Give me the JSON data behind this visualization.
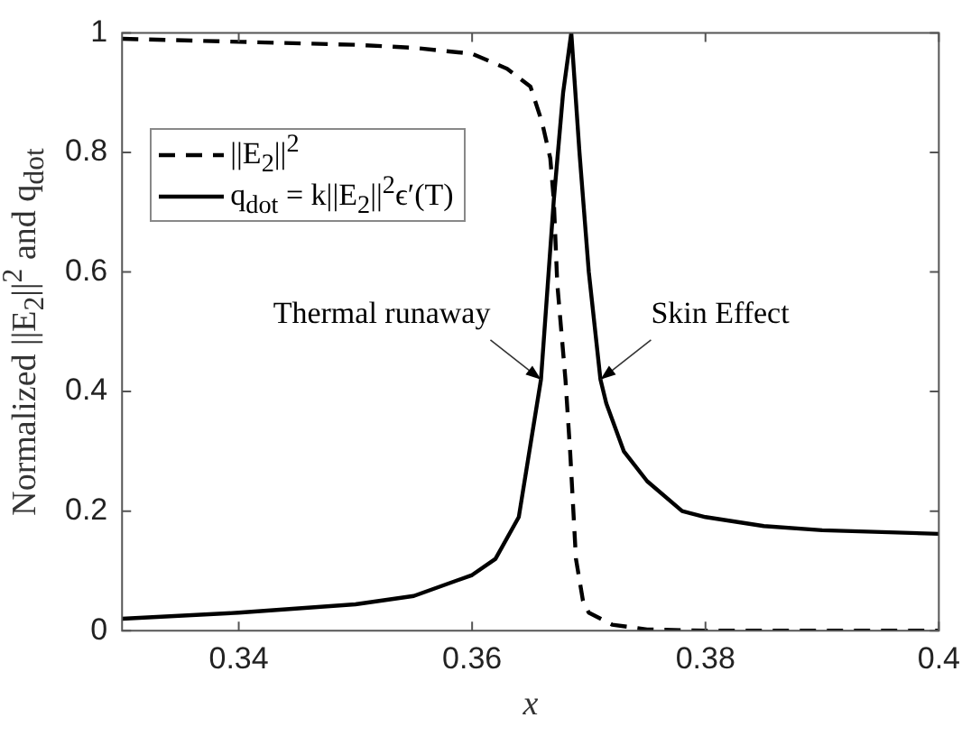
{
  "chart_data": {
    "type": "line",
    "xlabel": "x",
    "ylabel": "Normalized ||E$_{2}$||$^{2}$ and q$_{dot}$",
    "xlim": [
      0.33,
      0.4
    ],
    "xticks": [
      0.34,
      0.36,
      0.38,
      0.4
    ],
    "ylim": [
      0,
      1
    ],
    "yticks": [
      0,
      0.2,
      0.4,
      0.6,
      0.8,
      1
    ],
    "grid": false,
    "legend": "top left",
    "marker": "none",
    "series": [
      {
        "name": "||E$_{2}$||$^{2}$",
        "color": "#000000",
        "line_style": "dashed",
        "x": [
          0.33,
          0.34,
          0.35,
          0.355,
          0.36,
          0.363,
          0.365,
          0.366,
          0.3667,
          0.367,
          0.3673,
          0.368,
          0.3684,
          0.3689,
          0.3695,
          0.37,
          0.372,
          0.375,
          0.38,
          0.39,
          0.4
        ],
        "values": [
          0.99,
          0.985,
          0.98,
          0.975,
          0.965,
          0.94,
          0.91,
          0.85,
          0.79,
          0.72,
          0.58,
          0.42,
          0.3,
          0.12,
          0.05,
          0.03,
          0.01,
          0.002,
          0,
          0,
          0
        ]
      },
      {
        "name": "q$_{dot}$ = k||E$_{2}$||$^{2}$ϵ′(T)",
        "color": "#000000",
        "line_style": "solid",
        "x": [
          0.33,
          0.34,
          0.35,
          0.355,
          0.36,
          0.362,
          0.364,
          0.3659,
          0.367,
          0.3678,
          0.3685,
          0.3692,
          0.37,
          0.371,
          0.3715,
          0.373,
          0.375,
          0.378,
          0.38,
          0.385,
          0.39,
          0.4
        ],
        "values": [
          0.02,
          0.03,
          0.044,
          0.058,
          0.093,
          0.12,
          0.19,
          0.42,
          0.72,
          0.9,
          1.0,
          0.8,
          0.6,
          0.42,
          0.38,
          0.3,
          0.25,
          0.2,
          0.19,
          0.175,
          0.168,
          0.162
        ]
      }
    ],
    "annotations": [
      {
        "text": "Thermal runaway",
        "x": 0.3659,
        "y": 0.42
      },
      {
        "text": "Skin Effect",
        "x": 0.371,
        "y": 0.42
      }
    ]
  }
}
